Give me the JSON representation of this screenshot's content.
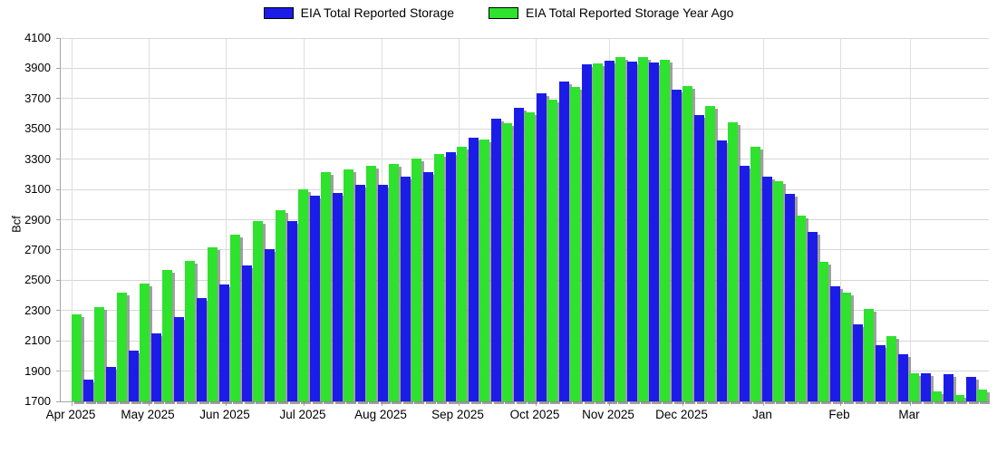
{
  "legend": {
    "items": [
      {
        "label": "EIA Total Reported Storage",
        "color": "#1c1ce8"
      },
      {
        "label": "EIA Total Reported Storage Year Ago",
        "color": "#2ee22e"
      }
    ]
  },
  "y_axis": {
    "title": "Bcf",
    "min": 1700,
    "max": 4100,
    "tick_step": 200,
    "ticks": [
      4100,
      3900,
      3700,
      3500,
      3300,
      3100,
      2900,
      2700,
      2500,
      2300,
      2100,
      1900,
      1700
    ]
  },
  "x_axis": {
    "labels": [
      "Apr 2025",
      "May 2025",
      "Jun 2025",
      "Jul 2025",
      "Aug 2025",
      "Sep 2025",
      "Oct 2025",
      "Nov 2025",
      "Dec 2025",
      "Jan",
      "Feb",
      "Mar"
    ]
  },
  "chart_data": {
    "type": "bar",
    "title": "",
    "xlabel": "",
    "ylabel": "Bcf",
    "ylim": [
      1700,
      4100
    ],
    "grid": true,
    "legend_position": "top-center",
    "x_labels": [
      "Apr 2025",
      "May 2025",
      "Jun 2025",
      "Jul 2025",
      "Aug 2025",
      "Sep 2025",
      "Oct 2025",
      "Nov 2025",
      "Dec 2025",
      "Jan",
      "Feb",
      "Mar"
    ],
    "series": [
      {
        "name": "EIA Total Reported Storage",
        "color": "#1c1ce8",
        "values": [
          null,
          1845,
          1930,
          2035,
          2150,
          2255,
          2380,
          2475,
          2600,
          2705,
          2890,
          3057,
          3078,
          3128,
          3133,
          3187,
          3217,
          3343,
          3440,
          3570,
          3642,
          3732,
          3810,
          3924,
          3952,
          3946,
          3936,
          3756,
          3590,
          3421,
          3257,
          3187,
          3068,
          2822,
          2459,
          2210,
          2070,
          2014,
          1887,
          1881,
          1860
        ]
      },
      {
        "name": "EIA Total Reported Storage Year Ago",
        "color": "#2ee22e",
        "values": [
          2275,
          2325,
          2420,
          2480,
          2565,
          2630,
          2715,
          2800,
          2890,
          2960,
          3100,
          3213,
          3233,
          3257,
          3271,
          3301,
          3333,
          3381,
          3431,
          3540,
          3612,
          3696,
          3776,
          3930,
          3975,
          3975,
          3956,
          3782,
          3650,
          3546,
          3381,
          3157,
          2928,
          2619,
          2419,
          2310,
          2130,
          1884,
          1767,
          1741,
          1775
        ]
      }
    ]
  }
}
